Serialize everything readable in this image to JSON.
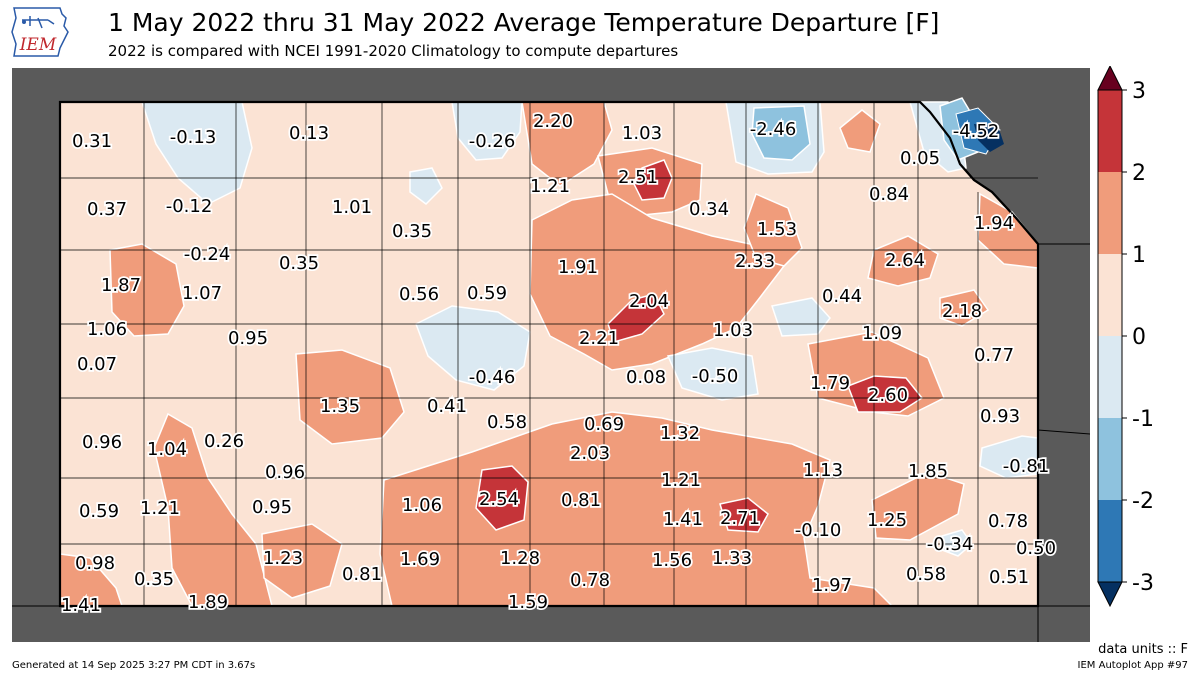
{
  "header": {
    "title": "1 May 2022 thru 31 May 2022 Average Temperature Departure [F]",
    "subtitle": "2022 is compared with NCEI 1991-2020 Climatology to compute departures",
    "logo_text": "IEM"
  },
  "colorbar": {
    "ticks": [
      "3",
      "2",
      "1",
      "0",
      "-1",
      "-2",
      "-3"
    ],
    "colors": [
      "#67001f",
      "#c53439",
      "#f09c7b",
      "#fbe3d4",
      "#dbe9f2",
      "#8ec2de",
      "#2e78b5",
      "#053061"
    ]
  },
  "values": [
    {
      "label": "0.31",
      "v": 0.31
    },
    {
      "label": "-0.13",
      "v": -0.13
    },
    {
      "label": "0.13",
      "v": 0.13
    },
    {
      "label": "-0.26",
      "v": -0.26
    },
    {
      "label": "2.20",
      "v": 2.2
    },
    {
      "label": "1.03",
      "v": 1.03
    },
    {
      "label": "-2.46",
      "v": -2.46
    },
    {
      "label": "-4.52",
      "v": -4.52
    },
    {
      "label": "0.05",
      "v": 0.05
    },
    {
      "label": "1.21",
      "v": 1.21
    },
    {
      "label": "2.51",
      "v": 2.51
    },
    {
      "label": "0.37",
      "v": 0.37
    },
    {
      "label": "-0.12",
      "v": -0.12
    },
    {
      "label": "1.01",
      "v": 1.01
    },
    {
      "label": "0.34",
      "v": 0.34
    },
    {
      "label": "0.84",
      "v": 0.84
    },
    {
      "label": "0.35",
      "v": 0.35
    },
    {
      "label": "1.53",
      "v": 1.53
    },
    {
      "label": "1.94",
      "v": 1.94
    },
    {
      "label": "-0.24",
      "v": -0.24
    },
    {
      "label": "0.35",
      "v": 0.35
    },
    {
      "label": "1.91",
      "v": 1.91
    },
    {
      "label": "2.33",
      "v": 2.33
    },
    {
      "label": "2.64",
      "v": 2.64
    },
    {
      "label": "1.87",
      "v": 1.87
    },
    {
      "label": "1.07",
      "v": 1.07
    },
    {
      "label": "0.56",
      "v": 0.56
    },
    {
      "label": "0.59",
      "v": 0.59
    },
    {
      "label": "2.04",
      "v": 2.04
    },
    {
      "label": "0.44",
      "v": 0.44
    },
    {
      "label": "1.06",
      "v": 1.06
    },
    {
      "label": "2.18",
      "v": 2.18
    },
    {
      "label": "0.95",
      "v": 0.95
    },
    {
      "label": "2.21",
      "v": 2.21
    },
    {
      "label": "1.03",
      "v": 1.03
    },
    {
      "label": "1.09",
      "v": 1.09
    },
    {
      "label": "0.07",
      "v": 0.07
    },
    {
      "label": "0.77",
      "v": 0.77
    },
    {
      "label": "-0.46",
      "v": -0.46
    },
    {
      "label": "0.08",
      "v": 0.08
    },
    {
      "label": "-0.50",
      "v": -0.5
    },
    {
      "label": "1.79",
      "v": 1.79
    },
    {
      "label": "2.60",
      "v": 2.6
    },
    {
      "label": "1.35",
      "v": 1.35
    },
    {
      "label": "0.41",
      "v": 0.41
    },
    {
      "label": "0.58",
      "v": 0.58
    },
    {
      "label": "0.69",
      "v": 0.69
    },
    {
      "label": "0.93",
      "v": 0.93
    },
    {
      "label": "1.32",
      "v": 1.32
    },
    {
      "label": "0.96",
      "v": 0.96
    },
    {
      "label": "1.04",
      "v": 1.04
    },
    {
      "label": "0.26",
      "v": 0.26
    },
    {
      "label": "2.03",
      "v": 2.03
    },
    {
      "label": "1.13",
      "v": 1.13
    },
    {
      "label": "1.85",
      "v": 1.85
    },
    {
      "label": "-0.81",
      "v": -0.81
    },
    {
      "label": "0.96",
      "v": 0.96
    },
    {
      "label": "1.21",
      "v": 1.21
    },
    {
      "label": "2.54",
      "v": 2.54
    },
    {
      "label": "0.81",
      "v": 0.81
    },
    {
      "label": "0.59",
      "v": 0.59
    },
    {
      "label": "1.21",
      "v": 1.21
    },
    {
      "label": "0.95",
      "v": 0.95
    },
    {
      "label": "1.06",
      "v": 1.06
    },
    {
      "label": "1.41",
      "v": 1.41
    },
    {
      "label": "2.71",
      "v": 2.71
    },
    {
      "label": "1.25",
      "v": 1.25
    },
    {
      "label": "0.78",
      "v": 0.78
    },
    {
      "label": "-0.10",
      "v": -0.1
    },
    {
      "label": "-0.34",
      "v": -0.34
    },
    {
      "label": "0.50",
      "v": 0.5
    },
    {
      "label": "0.98",
      "v": 0.98
    },
    {
      "label": "1.23",
      "v": 1.23
    },
    {
      "label": "1.69",
      "v": 1.69
    },
    {
      "label": "1.28",
      "v": 1.28
    },
    {
      "label": "1.56",
      "v": 1.56
    },
    {
      "label": "1.33",
      "v": 1.33
    },
    {
      "label": "0.35",
      "v": 0.35
    },
    {
      "label": "0.81",
      "v": 0.81
    },
    {
      "label": "0.78",
      "v": 0.78
    },
    {
      "label": "0.58",
      "v": 0.58
    },
    {
      "label": "0.51",
      "v": 0.51
    },
    {
      "label": "1.97",
      "v": 1.97
    },
    {
      "label": "1.41",
      "v": 1.41
    },
    {
      "label": "1.89",
      "v": 1.89
    },
    {
      "label": "1.59",
      "v": 1.59
    }
  ],
  "footer": {
    "units": "data units :: F",
    "generated": "Generated at 14 Sep 2025 3:27 PM CDT in 3.67s",
    "app": "IEM Autoplot App #97"
  }
}
